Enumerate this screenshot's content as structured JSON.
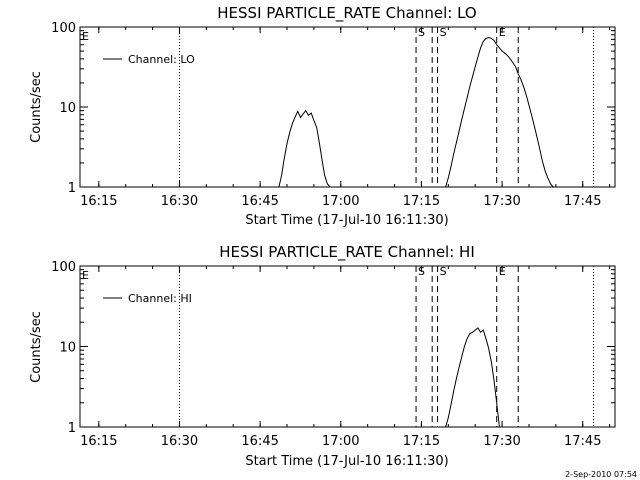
{
  "chart_data": [
    {
      "type": "line",
      "title": "HESSI PARTICLE_RATE Channel: LO",
      "xlabel": "Start Time (17-Jul-10 16:11:30)",
      "ylabel": "Counts/sec",
      "y_scale": "log",
      "ylim": [
        1,
        100
      ],
      "xlim": [
        "16:11:30",
        "17:51:00"
      ],
      "x_tick_labels": [
        "16:15",
        "16:30",
        "16:45",
        "17:00",
        "17:15",
        "17:30",
        "17:45"
      ],
      "y_tick_labels": [
        "1",
        "10",
        "100"
      ],
      "legend": {
        "position": "top-left",
        "entries": [
          "Channel: LO"
        ]
      },
      "grid": false,
      "vertical_markers": [
        {
          "time": "16:30",
          "style": "dotted",
          "label": ""
        },
        {
          "time": "17:47",
          "style": "dotted",
          "label": ""
        },
        {
          "time": "17:14",
          "style": "dashed",
          "label": "S"
        },
        {
          "time": "17:17",
          "style": "dashed",
          "label": ""
        },
        {
          "time": "17:18",
          "style": "dashed",
          "label": "S"
        },
        {
          "time": "17:29",
          "style": "dashed",
          "label": "E"
        },
        {
          "time": "17:33",
          "style": "dashed",
          "label": ""
        }
      ],
      "corner_label": "E",
      "series": [
        {
          "name": "Channel: LO",
          "segments": [
            {
              "x": [
                "16:48:30",
                "16:49:00",
                "16:49:30",
                "16:50:00",
                "16:50:30",
                "16:51:00",
                "16:51:30",
                "16:52:00",
                "16:52:30",
                "16:53:00",
                "16:53:30",
                "16:54:00",
                "16:54:30",
                "16:55:00",
                "16:55:30",
                "16:56:00",
                "16:56:30",
                "16:57:00",
                "16:57:30",
                "16:58:00"
              ],
              "y": [
                1,
                1.4,
                2.3,
                3.5,
                4.8,
                6.2,
                7.5,
                8.8,
                7.4,
                8.2,
                9.0,
                7.9,
                8.4,
                6.8,
                5.6,
                3.6,
                2.2,
                1.4,
                1.1,
                1
              ]
            },
            {
              "x": [
                "17:19:30",
                "17:20:00",
                "17:20:30",
                "17:21:00",
                "17:21:30",
                "17:22:00",
                "17:22:30",
                "17:23:00",
                "17:23:30",
                "17:24:00",
                "17:24:30",
                "17:25:00",
                "17:25:30",
                "17:26:00",
                "17:26:30",
                "17:27:00",
                "17:27:30",
                "17:28:00",
                "17:28:30",
                "17:29:00",
                "17:29:30",
                "17:30:00",
                "17:30:30",
                "17:31:00",
                "17:31:30",
                "17:32:00",
                "17:32:30",
                "17:33:00",
                "17:33:30",
                "17:34:00",
                "17:34:30",
                "17:35:00",
                "17:35:30",
                "17:36:00",
                "17:36:30",
                "17:37:00",
                "17:37:30",
                "17:38:00",
                "17:38:30",
                "17:39:00",
                "17:39:30"
              ],
              "y": [
                1,
                1.3,
                1.8,
                2.6,
                3.6,
                5.0,
                7.0,
                9.5,
                13,
                18,
                24,
                32,
                42,
                55,
                66,
                72,
                74,
                72,
                68,
                60,
                55,
                50,
                47,
                44,
                40,
                36,
                32,
                26,
                22,
                18,
                14,
                10.5,
                7.8,
                5.8,
                4.2,
                3.0,
                2.1,
                1.6,
                1.3,
                1.1,
                1
              ]
            }
          ]
        }
      ]
    },
    {
      "type": "line",
      "title": "HESSI PARTICLE_RATE Channel: HI",
      "xlabel": "Start Time (17-Jul-10 16:11:30)",
      "ylabel": "Counts/sec",
      "y_scale": "log",
      "ylim": [
        1,
        100
      ],
      "xlim": [
        "16:11:30",
        "17:51:00"
      ],
      "x_tick_labels": [
        "16:15",
        "16:30",
        "16:45",
        "17:00",
        "17:15",
        "17:30",
        "17:45"
      ],
      "y_tick_labels": [
        "1",
        "10",
        "100"
      ],
      "legend": {
        "position": "top-left",
        "entries": [
          "Channel: HI"
        ]
      },
      "grid": false,
      "vertical_markers": [
        {
          "time": "16:30",
          "style": "dotted",
          "label": ""
        },
        {
          "time": "17:47",
          "style": "dotted",
          "label": ""
        },
        {
          "time": "17:14",
          "style": "dashed",
          "label": "S"
        },
        {
          "time": "17:17",
          "style": "dashed",
          "label": ""
        },
        {
          "time": "17:18",
          "style": "dashed",
          "label": "S"
        },
        {
          "time": "17:29",
          "style": "dashed",
          "label": "E"
        },
        {
          "time": "17:33",
          "style": "dashed",
          "label": ""
        }
      ],
      "corner_label": "E",
      "series": [
        {
          "name": "Channel: HI",
          "segments": [
            {
              "x": [
                "17:19:30",
                "17:20:00",
                "17:20:30",
                "17:21:00",
                "17:21:30",
                "17:22:00",
                "17:22:30",
                "17:23:00",
                "17:23:30",
                "17:24:00",
                "17:24:30",
                "17:25:00",
                "17:25:30",
                "17:26:00",
                "17:26:30",
                "17:27:00",
                "17:27:30",
                "17:28:00",
                "17:28:30",
                "17:29:00",
                "17:29:30"
              ],
              "y": [
                1,
                1.3,
                1.9,
                2.8,
                4.0,
                5.5,
                7.5,
                10,
                12.5,
                14.5,
                15,
                16,
                17,
                15,
                16,
                12.5,
                9.5,
                6.5,
                3.8,
                2.0,
                1
              ]
            }
          ]
        }
      ]
    }
  ],
  "footer": {
    "timestamp": "2-Sep-2010 07:54"
  }
}
